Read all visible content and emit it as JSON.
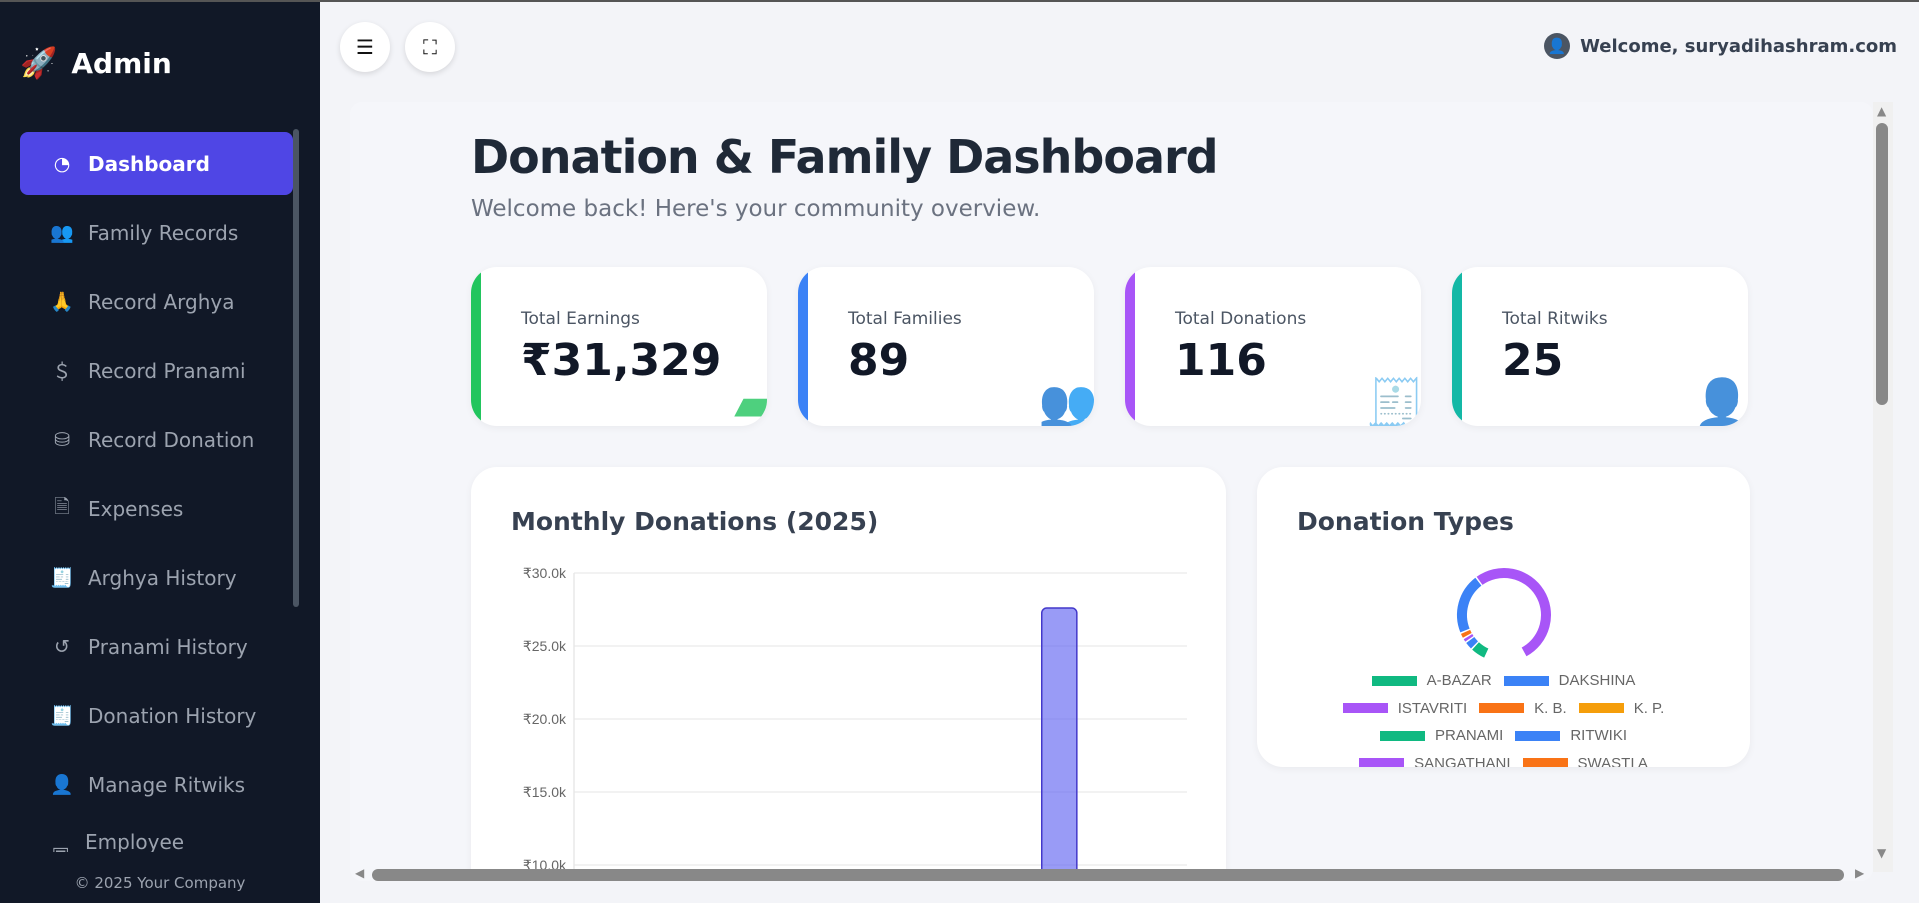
{
  "sidebar": {
    "brand": "Admin",
    "items": [
      {
        "label": "Dashboard",
        "icon": "gauge-icon",
        "active": true
      },
      {
        "label": "Family Records",
        "icon": "users-icon"
      },
      {
        "label": "Record Arghya",
        "icon": "praying-hands-icon"
      },
      {
        "label": "Record Pranami",
        "icon": "hand-holding-dollar-icon"
      },
      {
        "label": "Record Donation",
        "icon": "donate-icon"
      },
      {
        "label": "Expenses",
        "icon": "file-invoice-dollar-icon"
      },
      {
        "label": "Arghya History",
        "icon": "receipt-icon"
      },
      {
        "label": "Pranami History",
        "icon": "history-icon"
      },
      {
        "label": "Donation History",
        "icon": "receipt-icon"
      },
      {
        "label": "Manage Ritwiks",
        "icon": "user-tie-icon"
      },
      {
        "label": "Employee Management",
        "icon": "id-badge-icon"
      }
    ],
    "footer": "© 2025 Your Company"
  },
  "header": {
    "welcome": "Welcome, suryadihashram.com"
  },
  "main": {
    "title": "Donation & Family Dashboard",
    "subtitle": "Welcome back! Here's your community overview.",
    "cards": [
      {
        "label": "Total Earnings",
        "value": "₹31,329",
        "color": "#22c55e",
        "icon": "wallet-icon"
      },
      {
        "label": "Total Families",
        "value": "89",
        "color": "#3b82f6",
        "icon": "users-icon"
      },
      {
        "label": "Total Donations",
        "value": "116",
        "color": "#a855f7",
        "icon": "receipt-icon"
      },
      {
        "label": "Total Ritwiks",
        "value": "25",
        "color": "#14b8a6",
        "icon": "user-tie-icon"
      }
    ]
  },
  "chart_data": [
    {
      "type": "bar",
      "title": "Monthly Donations (2025)",
      "yticks": [
        "₹30.0k",
        "₹25.0k",
        "₹20.0k",
        "₹15.0k",
        "₹10.0k"
      ],
      "ylim": [
        10000,
        30000
      ],
      "grid": true,
      "values": [
        0,
        0,
        0,
        0,
        0,
        0,
        0,
        0,
        0,
        27600,
        0,
        0
      ],
      "bar_color": "#6366f1"
    },
    {
      "type": "pie",
      "title": "Donation Types",
      "legend": "bottom",
      "labels": [
        "A-BAZAR",
        "DAKSHINA",
        "ISTAVRITI",
        "K. B.",
        "K. P.",
        "PRANAMI",
        "RITWIKI",
        "SANGATHANI",
        "SWASTI A"
      ],
      "colors": [
        "#10b981",
        "#3b82f6",
        "#a855f7",
        "#f97316",
        "#f59e0b",
        "#10b981",
        "#3b82f6",
        "#a855f7",
        "#f97316"
      ],
      "values": [
        5,
        2.5,
        1,
        1.5,
        0,
        0,
        21,
        53,
        0
      ]
    }
  ]
}
